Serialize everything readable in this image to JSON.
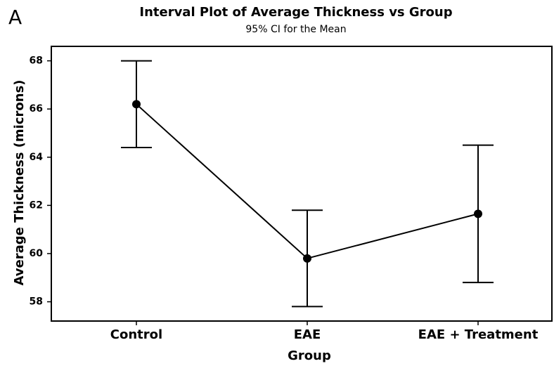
{
  "chart_data": {
    "type": "interval",
    "panel_label": "A",
    "title": "Interval Plot of Average Thickness vs Group",
    "subtitle": "95% CI for the Mean",
    "x_label": "Group",
    "y_label": "Average Thickness (microns)",
    "categories": [
      "Control",
      "EAE",
      "EAE + Treatment"
    ],
    "values": [
      66.2,
      59.8,
      61.65
    ],
    "errors": [
      1.8,
      2.0,
      2.85
    ],
    "color": "#000000",
    "ylim": [
      57.2,
      68.6
    ],
    "yticks": [
      58,
      60,
      62,
      64,
      66,
      68
    ]
  }
}
